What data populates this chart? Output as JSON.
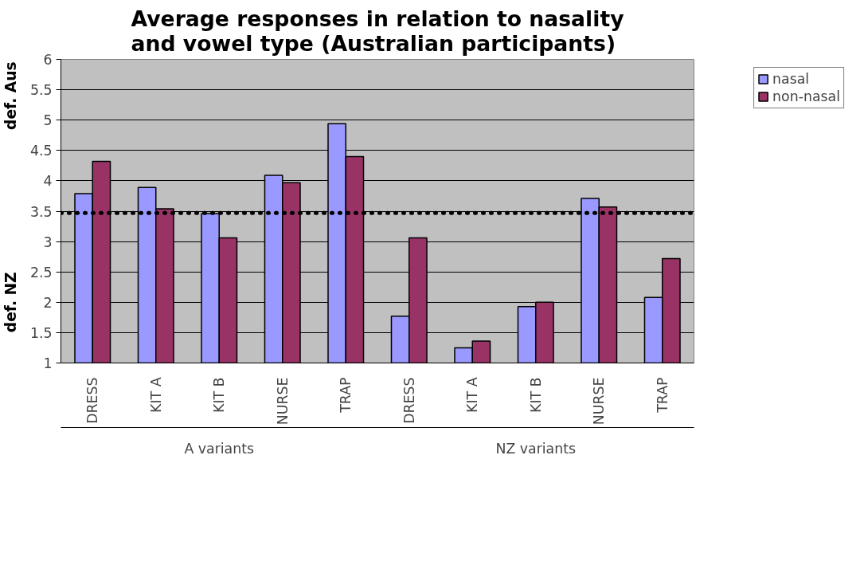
{
  "chart_data": {
    "type": "bar",
    "title": "Average responses in relation to nasality and vowel type (Australian participants)",
    "categories": [
      "DRESS",
      "KIT A",
      "KIT B",
      "NURSE",
      "TRAP",
      "DRESS",
      "KIT A",
      "KIT B",
      "NURSE",
      "TRAP"
    ],
    "series": [
      {
        "name": "nasal",
        "color": "#9999ff",
        "values": [
          3.79,
          3.89,
          3.46,
          4.09,
          4.94,
          1.77,
          1.25,
          1.93,
          3.71,
          2.08
        ]
      },
      {
        "name": "non-nasal",
        "color": "#993366",
        "values": [
          4.32,
          3.54,
          3.06,
          3.97,
          4.4,
          3.06,
          1.36,
          2.0,
          3.57,
          2.72
        ]
      }
    ],
    "ylim": [
      1,
      6
    ],
    "yticks": [
      1,
      1.5,
      2,
      2.5,
      3,
      3.5,
      4,
      4.5,
      5,
      5.5,
      6
    ],
    "grid": "y",
    "legend": "right",
    "ref_lines": [
      {
        "axis": "y",
        "value": 3.47,
        "color": "#000000",
        "line_style": "dotted"
      }
    ],
    "annotations": [
      "A variants",
      "NZ variants",
      "def. Aus",
      "def. NZ"
    ]
  }
}
